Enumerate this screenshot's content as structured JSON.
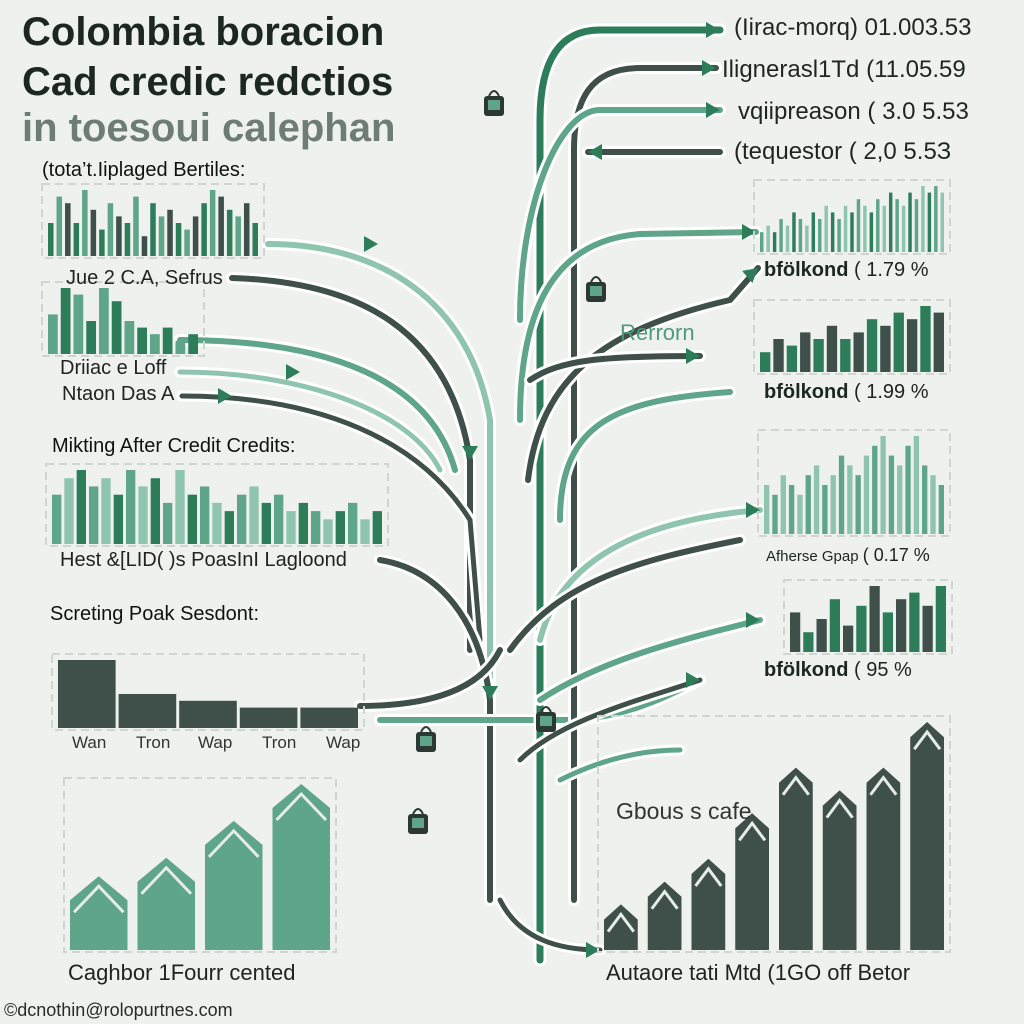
{
  "title": {
    "line1": "Colombia boracion",
    "line2": "Cad credic redctios",
    "line3": "in toesoui calephan"
  },
  "colors": {
    "accent": "#5fa58a",
    "dark": "#3f4f49",
    "darkgreen": "#2e7d5a",
    "light": "#8fc5ae",
    "background": "#eef1ee"
  },
  "top_right": [
    {
      "label": "(Iirac-morq)",
      "value": "01.003.53"
    },
    {
      "label": "Ilignerasl1Td",
      "value": "(11.05.59"
    },
    {
      "label": "vqiipreason",
      "value": "( 3.0 5.53"
    },
    {
      "label": "(tequestor",
      "value": "( 2,0 5.5З"
    }
  ],
  "left_sections": {
    "header1": "(tota’t.Iiplaged Bertiles:",
    "label1": "Jue 2 C.A, Sefrus",
    "label2a": "Driiac e Loff",
    "label2b": "Ntaon Das A",
    "header2": "Mikting After Credit Credits:",
    "label3": "Hest &[LID( )s PoasInI Lagloond",
    "header3": "Screting Poak Sesdont:",
    "tick_labels": [
      "Wan",
      "Tron",
      "Wap",
      "Tron",
      "Wap"
    ],
    "bottom_label": "Caghbor 1Fourr cented"
  },
  "right_sections": {
    "row1_name": "bfölkond",
    "row1_value": "( 1.79 %",
    "middle_label": "Rerrorn",
    "row2_name": "bfölkond",
    "row2_value": "( 1.99 %",
    "row3_name": "Afherse Gpap",
    "row3_value": "( 0.17 %",
    "row4_name": "bfölkond",
    "row4_value": "( 95 %",
    "bottom_header": "Gbous s cafe",
    "bottom_label": "Autaore tati Mtd (1GO off Betor"
  },
  "footer": "©dcnothin@rolopurtnes.com",
  "chart_data": [
    {
      "type": "bar",
      "title": "(tota’t.Iiplaged Bertiles:",
      "xlabel": "Jue 2 C.A, Sefrus",
      "values": [
        5,
        9,
        8,
        5,
        10,
        7,
        4,
        8,
        6,
        5,
        9,
        3,
        8,
        6,
        7,
        5,
        4,
        6,
        8,
        10,
        9,
        7,
        6,
        8,
        5
      ]
    },
    {
      "type": "bar",
      "xlabel": "Driiac e Loff",
      "values": [
        6,
        10,
        9,
        5,
        10,
        8,
        5,
        4,
        3,
        4,
        2,
        3
      ]
    },
    {
      "type": "bar",
      "title": "Mikting After Credit Credits:",
      "xlabel": "Hest &[LID( )s PoasInI Lagloond",
      "values": [
        6,
        8,
        9,
        7,
        8,
        6,
        9,
        7,
        8,
        5,
        9,
        6,
        7,
        5,
        4,
        6,
        7,
        5,
        6,
        4,
        5,
        4,
        3,
        4,
        5,
        3,
        4
      ]
    },
    {
      "type": "bar",
      "title": "Screting Poak Sesdont:",
      "categories": [
        "Wan",
        "Tron",
        "Wap",
        "Tron",
        "Wap"
      ],
      "values": [
        10,
        5,
        4,
        3,
        3
      ]
    },
    {
      "type": "bar",
      "xlabel": "Caghbor 1Fourr cented",
      "values": [
        4,
        5,
        7,
        9
      ]
    },
    {
      "type": "bar",
      "xlabel": "bfölkond ( 1.79 %",
      "values": [
        3,
        4,
        3,
        5,
        4,
        6,
        5,
        4,
        6,
        5,
        7,
        6,
        5,
        7,
        6,
        8,
        7,
        6,
        8,
        7,
        9,
        8,
        7,
        9,
        8,
        10,
        9,
        10,
        9
      ]
    },
    {
      "type": "bar",
      "xlabel": "bfölkond ( 1.99 %",
      "values": [
        3,
        5,
        4,
        6,
        5,
        7,
        5,
        6,
        8,
        7,
        9,
        8,
        10,
        9
      ]
    },
    {
      "type": "bar",
      "xlabel": "Afherse Gpap ( 0.17 %",
      "values": [
        5,
        4,
        6,
        5,
        4,
        6,
        7,
        5,
        6,
        8,
        7,
        6,
        8,
        9,
        10,
        8,
        7,
        9,
        10,
        7,
        6,
        5
      ]
    },
    {
      "type": "bar",
      "xlabel": "bfölkond ( 95 %",
      "values": [
        6,
        3,
        5,
        8,
        4,
        7,
        10,
        6,
        8,
        9,
        7,
        10
      ]
    },
    {
      "type": "bar",
      "title": "Gbous s cafe",
      "xlabel": "Autaore tati Mtd (1GO off Betor",
      "values": [
        2,
        3,
        4,
        6,
        8,
        7,
        8,
        10
      ]
    }
  ]
}
